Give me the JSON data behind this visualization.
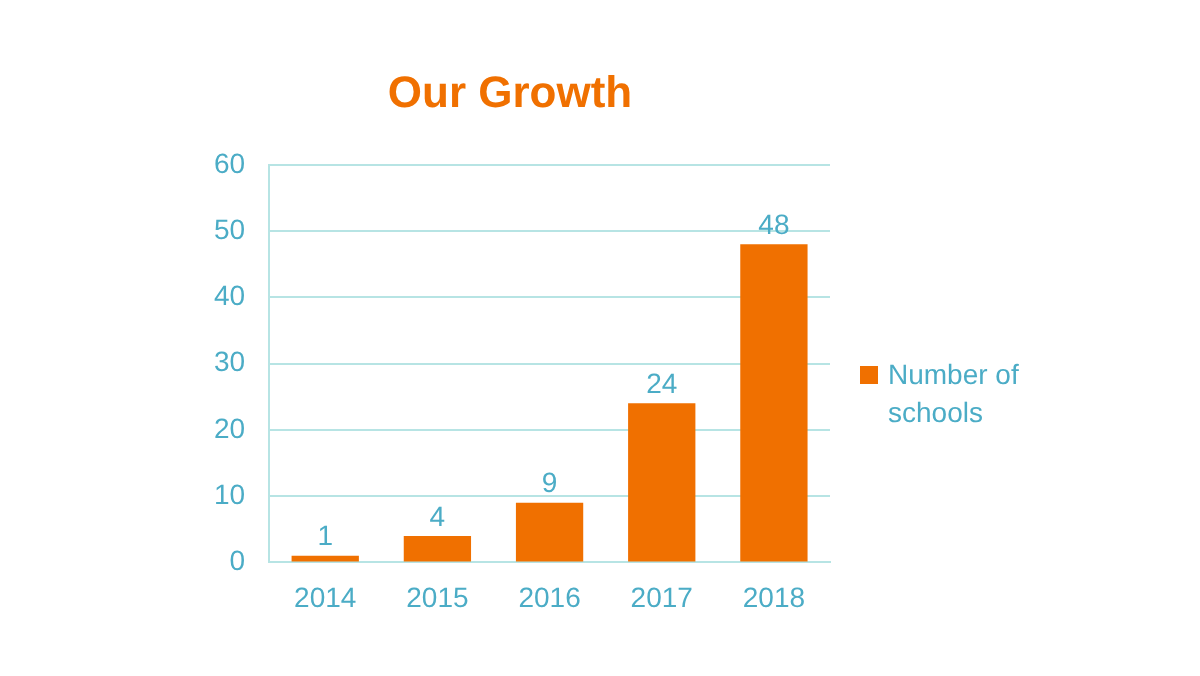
{
  "chart_data": {
    "type": "bar",
    "title": "Our Growth",
    "categories": [
      "2014",
      "2015",
      "2016",
      "2017",
      "2018"
    ],
    "series": [
      {
        "name": "Number of schools",
        "color": "#f07000",
        "values": [
          1,
          4,
          9,
          24,
          48
        ]
      }
    ],
    "ylim": [
      0,
      60
    ],
    "yticks": [
      0,
      10,
      20,
      30,
      40,
      50,
      60
    ],
    "grid": "y",
    "legend": "right",
    "data_labels": true
  }
}
